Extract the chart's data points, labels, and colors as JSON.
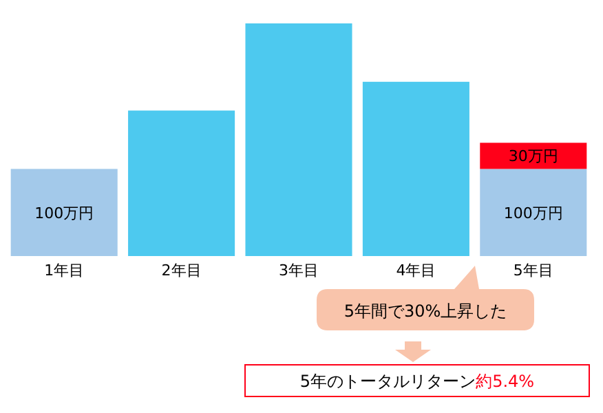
{
  "chart_data": {
    "type": "bar",
    "stacked": true,
    "categories": [
      "1年目",
      "2年目",
      "3年目",
      "4年目",
      "5年目"
    ],
    "series": [
      {
        "colors": [
          "#a3c9ea",
          "#4dc9ef",
          "#4dc9ef",
          "#4dc9ef",
          "#a3c9ea"
        ],
        "values": [
          100,
          167,
          267,
          200,
          100
        ],
        "value_labels": [
          "100万円",
          null,
          null,
          null,
          "100万円"
        ]
      },
      {
        "color": "#ff0019",
        "values": [
          null,
          null,
          null,
          null,
          30
        ],
        "value_labels": [
          null,
          null,
          null,
          null,
          "30万円"
        ]
      }
    ],
    "annotations": [
      "5年間で30%上昇した",
      "5年のトータルリターン",
      "約5.4%"
    ]
  }
}
